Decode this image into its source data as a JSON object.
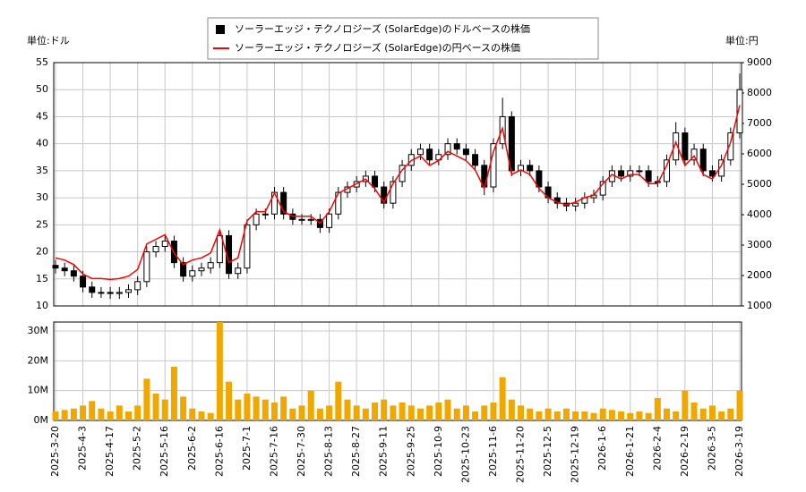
{
  "chart_data": [
    {
      "type": "candlestick",
      "y_label": "単位:ドル",
      "y2_label": "単位:円",
      "ylim": [
        10,
        55
      ],
      "yticks": [
        10,
        15,
        20,
        25,
        30,
        35,
        40,
        45,
        50,
        55
      ],
      "y2lim": [
        1000,
        9000
      ],
      "y2ticks": [
        1000,
        2000,
        3000,
        4000,
        5000,
        6000,
        7000,
        8000,
        9000
      ],
      "grid": true,
      "legend": "top",
      "series": [
        {
          "name": "ソーラーエッジ・テクノロジーズ (SolarEdge)のドルベースの株価",
          "color": "#000000",
          "open": [
            17.5,
            17,
            16.5,
            15.5,
            13.5,
            12.5,
            12.5,
            12.3,
            12.5,
            13,
            14.5,
            20,
            21,
            22,
            18,
            15.5,
            16.5,
            17,
            18,
            23,
            16,
            17,
            25,
            27,
            27,
            31,
            27,
            26,
            26,
            26,
            24.5,
            27,
            31,
            32,
            33,
            34,
            32,
            29,
            33,
            36,
            38,
            39,
            37,
            38,
            40,
            39,
            38,
            36,
            32,
            40,
            45,
            35,
            36,
            35,
            32,
            30,
            29,
            28.5,
            29,
            30,
            30.5,
            33,
            35,
            34,
            35,
            35,
            33,
            33,
            37,
            42,
            37,
            39,
            35,
            34,
            37,
            42
          ],
          "high": [
            18.5,
            18,
            17.5,
            16.5,
            14.5,
            13.5,
            13.5,
            13.5,
            14,
            15.5,
            21,
            22,
            23,
            23,
            19,
            17.5,
            18,
            19,
            24,
            24,
            18,
            26,
            28,
            28,
            32,
            32,
            28,
            27,
            27,
            27,
            28,
            32,
            33,
            34,
            35,
            35,
            33,
            34,
            37,
            39,
            40,
            40,
            39,
            41,
            41,
            40,
            39,
            37,
            41,
            48.5,
            46,
            37,
            37,
            36,
            33,
            31,
            30,
            30,
            31,
            31.5,
            34,
            36,
            36,
            36,
            36,
            36,
            34,
            38,
            44,
            43,
            40,
            40,
            36,
            38,
            43,
            53
          ],
          "low": [
            16,
            15.5,
            14.5,
            12.5,
            11.5,
            11.5,
            11.3,
            11.3,
            11.5,
            12,
            13.5,
            19,
            20,
            17,
            14.5,
            14.5,
            15.5,
            16,
            17,
            15,
            15,
            16,
            24,
            26,
            26,
            26,
            25,
            25,
            25,
            23.5,
            23.5,
            26,
            30,
            31,
            32,
            31,
            28,
            28,
            32,
            35,
            37,
            36,
            36,
            37,
            38,
            37,
            35,
            30.5,
            31,
            39,
            34,
            34,
            34,
            31,
            29,
            28,
            27.5,
            27.5,
            28,
            29,
            29.5,
            32,
            33,
            33,
            34,
            32,
            32,
            32,
            36,
            36,
            36,
            34,
            33,
            33,
            36,
            41
          ],
          "close": [
            17,
            16.5,
            15.5,
            13.5,
            12.5,
            12.5,
            12.3,
            12.5,
            13,
            14.5,
            20,
            21,
            22,
            18,
            15.5,
            16.5,
            17,
            18,
            23,
            16,
            17,
            25,
            27,
            27,
            31,
            27,
            26,
            26,
            26,
            24.5,
            27,
            31,
            32,
            33,
            34,
            32,
            29,
            33,
            36,
            38,
            39,
            37,
            38,
            40,
            39,
            38,
            36,
            32,
            40,
            45,
            35,
            36,
            35,
            32,
            30,
            29,
            28.5,
            29,
            30,
            30.5,
            33,
            35,
            34,
            35,
            35,
            33,
            33,
            37,
            42,
            37,
            39,
            35,
            34,
            37,
            42,
            50
          ]
        },
        {
          "name": "ソーラーエッジ・テクノロジーズ (SolarEdge)の円ベースの株価",
          "color": "#ff0000",
          "axis": "y2",
          "values": [
            2580,
            2510,
            2360,
            2050,
            1900,
            1900,
            1870,
            1900,
            1980,
            2200,
            3040,
            3190,
            3340,
            2740,
            2360,
            2510,
            2580,
            2740,
            3500,
            2430,
            2580,
            3800,
            4100,
            4100,
            4710,
            4100,
            3950,
            3950,
            3950,
            3720,
            4100,
            4710,
            4860,
            5020,
            5170,
            4860,
            4410,
            5020,
            5470,
            5780,
            5930,
            5620,
            5780,
            6080,
            5930,
            5780,
            5470,
            4860,
            6080,
            6840,
            5320,
            5470,
            5320,
            4860,
            4560,
            4410,
            4330,
            4410,
            4560,
            4640,
            5020,
            5320,
            5170,
            5320,
            5320,
            5020,
            5020,
            5620,
            6380,
            5620,
            5930,
            5320,
            5170,
            5620,
            6380,
            7600
          ]
        }
      ]
    },
    {
      "type": "bar",
      "color": "#f0a800",
      "grid": true,
      "categories": [
        "2025-3-20",
        null,
        null,
        "2025-4-3",
        null,
        null,
        "2025-4-17",
        null,
        null,
        "2025-5-2",
        null,
        null,
        "2025-5-16",
        null,
        null,
        "2025-6-2",
        null,
        null,
        "2025-6-16",
        null,
        null,
        "2025-7-1",
        null,
        null,
        "2025-7-16",
        null,
        null,
        "2025-7-30",
        null,
        null,
        "2025-8-13",
        null,
        null,
        "2025-8-27",
        null,
        null,
        "2025-9-11",
        null,
        null,
        "2025-9-25",
        null,
        null,
        "2025-10-9",
        null,
        null,
        "2025-10-23",
        null,
        null,
        "2025-11-6",
        null,
        null,
        "2025-11-20",
        null,
        null,
        "2025-12-5",
        null,
        null,
        "2025-12-19",
        null,
        null,
        "2026-1-6",
        null,
        null,
        "2026-1-21",
        null,
        null,
        "2026-2-4",
        null,
        null,
        "2026-2-19",
        null,
        null,
        "2026-3-5",
        null,
        null,
        "2026-3-19"
      ],
      "values": [
        3000000,
        3500000,
        4000000,
        5000000,
        6500000,
        4000000,
        3000000,
        5000000,
        3000000,
        5000000,
        14000000,
        9000000,
        7000000,
        18000000,
        8000000,
        4000000,
        3000000,
        2500000,
        33000000,
        13000000,
        7000000,
        9000000,
        8000000,
        7000000,
        6000000,
        8000000,
        4000000,
        5000000,
        10000000,
        4000000,
        5000000,
        13000000,
        7000000,
        5000000,
        4000000,
        6000000,
        7000000,
        5000000,
        6000000,
        5000000,
        4000000,
        5000000,
        6000000,
        7000000,
        4000000,
        5000000,
        3000000,
        5000000,
        6000000,
        14500000,
        7000000,
        5000000,
        4000000,
        3000000,
        4000000,
        3000000,
        4000000,
        3000000,
        3000000,
        2500000,
        4000000,
        3500000,
        3000000,
        2500000,
        3000000,
        2500000,
        7500000,
        4000000,
        3000000,
        10000000,
        6000000,
        4000000,
        5000000,
        3000000,
        4000000,
        10000000
      ],
      "ylim": [
        0,
        33000000
      ],
      "yticks": [
        {
          "value": 0,
          "label": "0M"
        },
        {
          "value": 10000000,
          "label": "10M"
        },
        {
          "value": 20000000,
          "label": "20M"
        },
        {
          "value": 30000000,
          "label": "30M"
        }
      ]
    }
  ]
}
